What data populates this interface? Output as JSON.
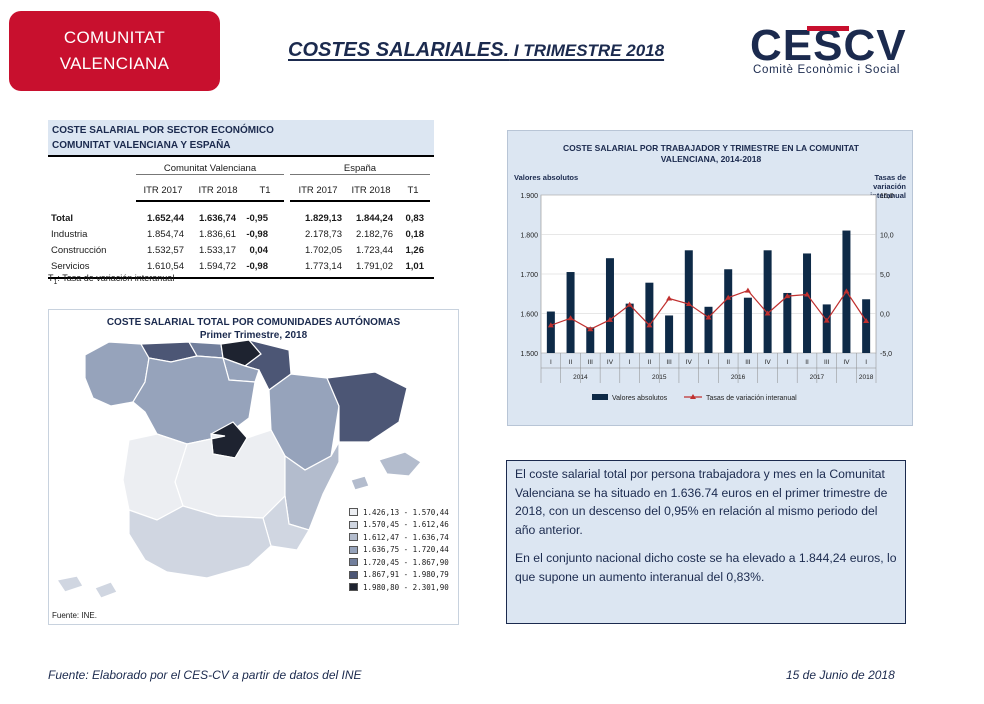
{
  "header": {
    "badge_line1": "COMUNITAT",
    "badge_line2": "VALENCIANA",
    "title_main": "COSTES SALARIALES.",
    "title_tail": " I TRIMESTRE 2018",
    "logo_letters": "CESCV",
    "logo_subtitle": "Comitè Econòmic i Social",
    "colors": {
      "brand_red": "#c8102e",
      "navy": "#1b2a4e"
    }
  },
  "sector_table": {
    "title_line1": "COSTE SALARIAL POR SECTOR ECONÓMICO",
    "title_line2": "COMUNITAT VALENCIANA Y ESPAÑA",
    "group_cv": "Comunitat Valenciana",
    "group_es": "España",
    "columns": [
      "ITR 2017",
      "ITR 2018",
      "T1",
      "ITR 2017",
      "ITR 2018",
      "T1"
    ],
    "rows": [
      {
        "label": "Total",
        "values": [
          "1.652,44",
          "1.636,74",
          "-0,95",
          "1.829,13",
          "1.844,24",
          "0,83"
        ]
      },
      {
        "label": "Industria",
        "values": [
          "1.854,74",
          "1.836,61",
          "-0,98",
          "2.178,73",
          "2.182,76",
          "0,18"
        ]
      },
      {
        "label": "Construcción",
        "values": [
          "1.532,57",
          "1.533,17",
          "0,04",
          "1.702,05",
          "1.723,44",
          "1,26"
        ]
      },
      {
        "label": "Servicios",
        "values": [
          "1.610,54",
          "1.594,72",
          "-0,98",
          "1.773,14",
          "1.791,02",
          "1,01"
        ]
      }
    ],
    "note_symbol": "T",
    "note_sub": "1",
    "note_text": ": Tasa de variación interanual"
  },
  "map": {
    "title_line1": "COSTE SALARIAL TOTAL POR COMUNIDADES AUTÓNOMAS",
    "title_line2": "Primer Trimestre, 2018",
    "legend": [
      {
        "label": "1.426,13 - 1.570,44",
        "color": "#eceef2"
      },
      {
        "label": "1.570,45 - 1.612,46",
        "color": "#d0d6e1"
      },
      {
        "label": "1.612,47 - 1.636,74",
        "color": "#b3bccd"
      },
      {
        "label": "1.636,75 - 1.720,44",
        "color": "#96a3bb"
      },
      {
        "label": "1.720,45 - 1.867,90",
        "color": "#727f9c"
      },
      {
        "label": "1.867,91 - 1.980,79",
        "color": "#4c5675"
      },
      {
        "label": "1.980,80 - 2.301,90",
        "color": "#1e2330"
      }
    ],
    "source": "Fuente: INE."
  },
  "chart_data": {
    "type": "bar",
    "title": "COSTE SALARIAL POR TRABAJADOR Y TRIMESTRE EN LA COMUNITAT VALENCIANA, 2014-2018",
    "left_axis_label": "Valores absolutos",
    "right_axis_label": "Tasas de variación interanual",
    "categories": [
      "I",
      "II",
      "III",
      "IV",
      "I",
      "II",
      "III",
      "IV",
      "I",
      "II",
      "III",
      "IV",
      "I",
      "II",
      "III",
      "IV",
      "I"
    ],
    "years": [
      "2014",
      "2015",
      "2016",
      "2017",
      "2018"
    ],
    "ylim_left": [
      1500,
      1900
    ],
    "ylim_right": [
      -5,
      15
    ],
    "left_ticks": [
      "1.500",
      "1.600",
      "1.700",
      "1.800",
      "1.900"
    ],
    "right_ticks": [
      "-5,0",
      "0,0",
      "5,0",
      "10,0",
      "15,0"
    ],
    "series": [
      {
        "name": "Valores absolutos",
        "kind": "bar",
        "color": "#0e2a47",
        "values": [
          1605,
          1705,
          1565,
          1740,
          1625,
          1678,
          1595,
          1760,
          1617,
          1712,
          1640,
          1760,
          1652,
          1752,
          1623,
          1810,
          1636
        ]
      },
      {
        "name": "Tasas de variación interanual",
        "kind": "line",
        "color": "#c0302f",
        "values": [
          -1.5,
          -0.6,
          -2.0,
          -0.8,
          1.1,
          -1.5,
          1.9,
          1.2,
          -0.5,
          2.0,
          2.9,
          0.0,
          2.2,
          2.4,
          -0.9,
          2.8,
          -0.95
        ]
      }
    ],
    "grid": true,
    "legend_position": "bottom"
  },
  "summary": {
    "paragraph1": "El coste salarial total por persona trabajadora y mes en la Comunitat Valenciana se ha situado en 1.636.74 euros en el primer trimestre de 2018, con un descenso del 0,95% en relación al mismo periodo del año anterior.",
    "paragraph2": "En el conjunto nacional dicho coste se ha elevado a 1.844,24 euros, lo que supone un aumento interanual del 0,83%."
  },
  "footer": {
    "source": "Fuente: Elaborado por el CES-CV a partir de datos del INE",
    "date": "15 de Junio de 2018"
  }
}
